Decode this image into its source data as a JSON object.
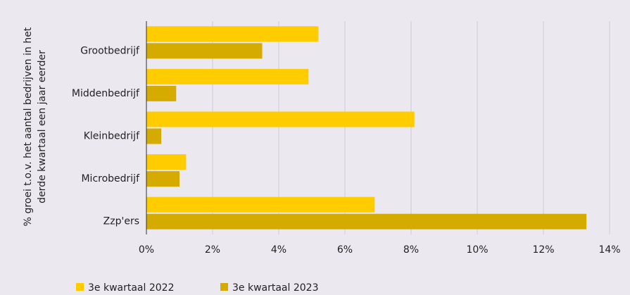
{
  "chart_data": {
    "type": "hbar",
    "y_label": [
      "% groei t.o.v. het aantal bedrijven in het",
      "derde kwartaal een jaar eerder"
    ],
    "categories": [
      "Grootbedrijf",
      "Middenbedrijf",
      "Kleinbedrijf",
      "Microbedrijf",
      "Zzp'ers"
    ],
    "series": [
      {
        "name": "3e kwartaal 2022",
        "color": "#ffcc00",
        "values": [
          5.2,
          4.9,
          8.1,
          1.2,
          6.9
        ]
      },
      {
        "name": "3e kwartaal 2023",
        "color": "#d5ab00",
        "values": [
          3.5,
          0.9,
          0.45,
          1.0,
          13.3
        ]
      }
    ],
    "xlim": [
      0,
      14
    ],
    "xticks": [
      {
        "value": 0,
        "label": "0%"
      },
      {
        "value": 2,
        "label": "2%"
      },
      {
        "value": 4,
        "label": "4%"
      },
      {
        "value": 6,
        "label": "6%"
      },
      {
        "value": 8,
        "label": "8%"
      },
      {
        "value": 10,
        "label": "10%"
      },
      {
        "value": 12,
        "label": "12%"
      },
      {
        "value": 14,
        "label": "14%"
      }
    ],
    "grid": true,
    "legend": "bottom-left"
  }
}
